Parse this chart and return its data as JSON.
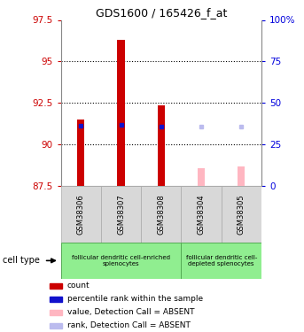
{
  "title": "GDS1600 / 165426_f_at",
  "samples": [
    "GSM38306",
    "GSM38307",
    "GSM38308",
    "GSM38304",
    "GSM38305"
  ],
  "ylim": [
    87.5,
    97.5
  ],
  "yticks_left": [
    87.5,
    90.0,
    92.5,
    95.0,
    97.5
  ],
  "yticks_right_labels": [
    "0",
    "25",
    "50",
    "75",
    "100%"
  ],
  "yticks_right_vals": [
    87.5,
    90.0,
    92.5,
    95.0,
    97.5
  ],
  "red_bar_bottom": 87.5,
  "red_bar_tops": [
    91.5,
    96.3,
    92.35,
    null,
    null
  ],
  "blue_markers": [
    91.15,
    91.2,
    91.1,
    null,
    null
  ],
  "pink_bar_tops": [
    null,
    null,
    null,
    88.55,
    88.65
  ],
  "lavender_markers": [
    null,
    null,
    null,
    91.05,
    91.1
  ],
  "red_color": "#CC0000",
  "blue_color": "#1111CC",
  "pink_color": "#FFB6C1",
  "lavender_color": "#BBBBEE",
  "green_color": "#90EE90",
  "green_border": "#55AA55",
  "gray_color": "#D8D8D8",
  "gray_border": "#AAAAAA",
  "right_axis_color": "#0000DD",
  "left_axis_color": "#CC0000",
  "legend_items": [
    [
      "#CC0000",
      "count"
    ],
    [
      "#1111CC",
      "percentile rank within the sample"
    ],
    [
      "#FFB6C1",
      "value, Detection Call = ABSENT"
    ],
    [
      "#BBBBEE",
      "rank, Detection Call = ABSENT"
    ]
  ]
}
